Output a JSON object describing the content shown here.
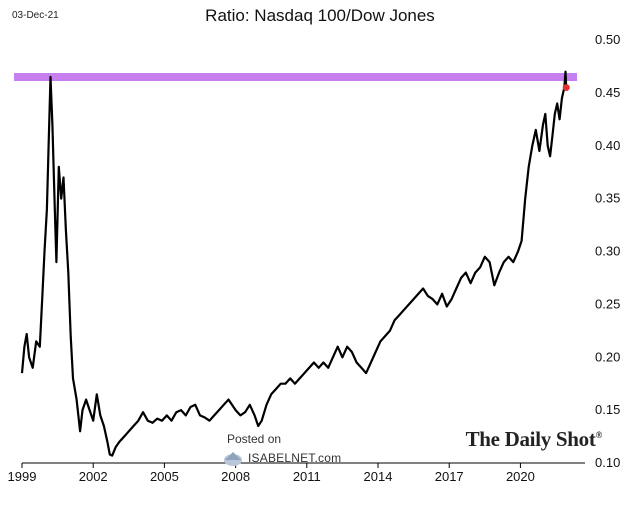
{
  "header": {
    "date": "03-Dec-21",
    "title": "Ratio: Nasdaq 100/Dow Jones"
  },
  "watermark": {
    "posted_on": "Posted on",
    "site": "ISABELNET.com",
    "brand": "The Daily Shot",
    "brand_mark": "®"
  },
  "colors": {
    "line": "#000000",
    "resistance": "#c77ff0",
    "marker": "#e03030",
    "background": "#ffffff"
  },
  "chart_data": {
    "type": "line",
    "title": "Ratio: Nasdaq 100/Dow Jones",
    "xlabel": "",
    "ylabel": "",
    "xlim": [
      1999.0,
      2022.3
    ],
    "ylim": [
      0.1,
      0.5
    ],
    "x_ticks": [
      1999,
      2002,
      2005,
      2008,
      2011,
      2014,
      2017,
      2020
    ],
    "x_tick_labels": [
      "1999",
      "2002",
      "2005",
      "2008",
      "2011",
      "2014",
      "2017",
      "2020"
    ],
    "y_ticks": [
      0.1,
      0.15,
      0.2,
      0.25,
      0.3,
      0.35,
      0.4,
      0.45,
      0.5
    ],
    "y_tick_labels": [
      "0.10",
      "0.15",
      "0.20",
      "0.25",
      "0.30",
      "0.35",
      "0.40",
      "0.45",
      "0.50"
    ],
    "y_axis_side": "right",
    "grid": false,
    "series": [
      {
        "values": [
          [
            1999.0,
            0.185
          ],
          [
            1999.1,
            0.21
          ],
          [
            1999.2,
            0.222
          ],
          [
            1999.3,
            0.2
          ],
          [
            1999.45,
            0.19
          ],
          [
            1999.6,
            0.215
          ],
          [
            1999.75,
            0.21
          ],
          [
            1999.85,
            0.255
          ],
          [
            1999.95,
            0.3
          ],
          [
            2000.05,
            0.34
          ],
          [
            2000.12,
            0.4
          ],
          [
            2000.2,
            0.465
          ],
          [
            2000.28,
            0.42
          ],
          [
            2000.38,
            0.34
          ],
          [
            2000.45,
            0.29
          ],
          [
            2000.55,
            0.38
          ],
          [
            2000.65,
            0.35
          ],
          [
            2000.75,
            0.37
          ],
          [
            2000.85,
            0.32
          ],
          [
            2000.95,
            0.28
          ],
          [
            2001.05,
            0.22
          ],
          [
            2001.15,
            0.18
          ],
          [
            2001.3,
            0.16
          ],
          [
            2001.45,
            0.13
          ],
          [
            2001.55,
            0.15
          ],
          [
            2001.7,
            0.16
          ],
          [
            2001.85,
            0.15
          ],
          [
            2002.0,
            0.14
          ],
          [
            2002.15,
            0.165
          ],
          [
            2002.3,
            0.145
          ],
          [
            2002.45,
            0.135
          ],
          [
            2002.6,
            0.12
          ],
          [
            2002.7,
            0.108
          ],
          [
            2002.8,
            0.107
          ],
          [
            2002.95,
            0.115
          ],
          [
            2003.1,
            0.12
          ],
          [
            2003.3,
            0.125
          ],
          [
            2003.5,
            0.13
          ],
          [
            2003.7,
            0.135
          ],
          [
            2003.9,
            0.14
          ],
          [
            2004.1,
            0.148
          ],
          [
            2004.3,
            0.14
          ],
          [
            2004.5,
            0.138
          ],
          [
            2004.7,
            0.142
          ],
          [
            2004.9,
            0.14
          ],
          [
            2005.1,
            0.145
          ],
          [
            2005.3,
            0.14
          ],
          [
            2005.5,
            0.148
          ],
          [
            2005.7,
            0.15
          ],
          [
            2005.9,
            0.145
          ],
          [
            2006.1,
            0.153
          ],
          [
            2006.3,
            0.155
          ],
          [
            2006.5,
            0.145
          ],
          [
            2006.7,
            0.143
          ],
          [
            2006.9,
            0.14
          ],
          [
            2007.1,
            0.145
          ],
          [
            2007.3,
            0.15
          ],
          [
            2007.5,
            0.155
          ],
          [
            2007.7,
            0.16
          ],
          [
            2007.85,
            0.155
          ],
          [
            2008.0,
            0.15
          ],
          [
            2008.2,
            0.145
          ],
          [
            2008.4,
            0.148
          ],
          [
            2008.6,
            0.155
          ],
          [
            2008.8,
            0.145
          ],
          [
            2008.95,
            0.135
          ],
          [
            2009.1,
            0.14
          ],
          [
            2009.3,
            0.155
          ],
          [
            2009.5,
            0.165
          ],
          [
            2009.7,
            0.17
          ],
          [
            2009.9,
            0.175
          ],
          [
            2010.1,
            0.175
          ],
          [
            2010.3,
            0.18
          ],
          [
            2010.5,
            0.175
          ],
          [
            2010.7,
            0.18
          ],
          [
            2010.9,
            0.185
          ],
          [
            2011.1,
            0.19
          ],
          [
            2011.3,
            0.195
          ],
          [
            2011.5,
            0.19
          ],
          [
            2011.7,
            0.195
          ],
          [
            2011.9,
            0.19
          ],
          [
            2012.1,
            0.2
          ],
          [
            2012.3,
            0.21
          ],
          [
            2012.5,
            0.2
          ],
          [
            2012.7,
            0.21
          ],
          [
            2012.9,
            0.205
          ],
          [
            2013.1,
            0.195
          ],
          [
            2013.3,
            0.19
          ],
          [
            2013.5,
            0.185
          ],
          [
            2013.7,
            0.195
          ],
          [
            2013.9,
            0.205
          ],
          [
            2014.1,
            0.215
          ],
          [
            2014.3,
            0.22
          ],
          [
            2014.5,
            0.225
          ],
          [
            2014.7,
            0.235
          ],
          [
            2014.9,
            0.24
          ],
          [
            2015.1,
            0.245
          ],
          [
            2015.3,
            0.25
          ],
          [
            2015.5,
            0.255
          ],
          [
            2015.7,
            0.26
          ],
          [
            2015.9,
            0.265
          ],
          [
            2016.1,
            0.258
          ],
          [
            2016.3,
            0.255
          ],
          [
            2016.5,
            0.25
          ],
          [
            2016.7,
            0.26
          ],
          [
            2016.9,
            0.248
          ],
          [
            2017.1,
            0.255
          ],
          [
            2017.3,
            0.265
          ],
          [
            2017.5,
            0.275
          ],
          [
            2017.7,
            0.28
          ],
          [
            2017.9,
            0.27
          ],
          [
            2018.1,
            0.28
          ],
          [
            2018.3,
            0.285
          ],
          [
            2018.5,
            0.295
          ],
          [
            2018.7,
            0.29
          ],
          [
            2018.9,
            0.268
          ],
          [
            2019.1,
            0.28
          ],
          [
            2019.3,
            0.29
          ],
          [
            2019.5,
            0.295
          ],
          [
            2019.7,
            0.29
          ],
          [
            2019.9,
            0.3
          ],
          [
            2020.05,
            0.31
          ],
          [
            2020.2,
            0.35
          ],
          [
            2020.35,
            0.38
          ],
          [
            2020.5,
            0.4
          ],
          [
            2020.65,
            0.415
          ],
          [
            2020.8,
            0.395
          ],
          [
            2020.95,
            0.42
          ],
          [
            2021.05,
            0.43
          ],
          [
            2021.15,
            0.4
          ],
          [
            2021.25,
            0.39
          ],
          [
            2021.35,
            0.41
          ],
          [
            2021.45,
            0.43
          ],
          [
            2021.55,
            0.44
          ],
          [
            2021.65,
            0.425
          ],
          [
            2021.75,
            0.445
          ],
          [
            2021.85,
            0.455
          ],
          [
            2021.9,
            0.47
          ],
          [
            2021.93,
            0.455
          ]
        ]
      }
    ],
    "annotations": {
      "resistance_level": 0.465,
      "last_point": [
        2021.93,
        0.455
      ]
    }
  }
}
